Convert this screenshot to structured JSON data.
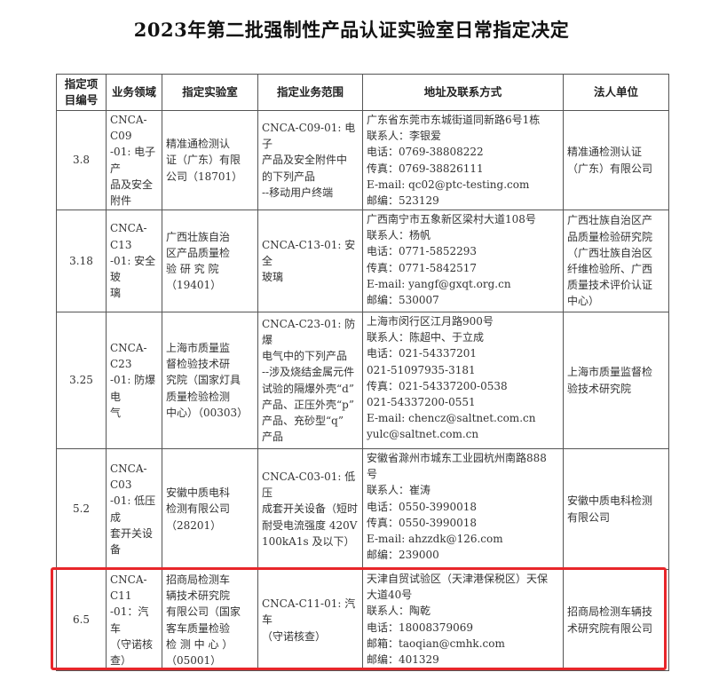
{
  "title": "2023年第二批强制性产品认证实验室日常指定决定",
  "headers": [
    "指定项\n目编号",
    "业务领域",
    "指定实验室",
    "指定业务范围",
    "地址及联系方式",
    "法人单位"
  ],
  "rows": [
    {
      "id": "3.8",
      "field": "CNCA-C09\n-01: 电子产\n品及安全\n附件",
      "lab": "精准通检测认\n证（广东）有限\n公司（18701）",
      "scope": "CNCA-C09-01: 电子\n产品及安全附件中\n的下列产品\n--移动用户终端",
      "contact": "广东省东莞市东城街道同新路6号1栋\n联系人：李银爱\n电话：0769-38808222\n传真：0769-38826111\nE-mail:  qc02@ptc-testing.com\n邮编：523129",
      "entity": "精准通检测认证\n（广东）有限公司"
    },
    {
      "id": "3.18",
      "field": "CNCA-C13\n-01: 安全玻\n璃",
      "lab": "广西壮族自治\n区产品质量检\n验 研 究 院\n（19401）",
      "scope": "CNCA-C13-01: 安全\n玻璃",
      "contact": "广西南宁市五象新区梁村大道108号\n联系人：杨帆\n电话：0771-5852293\n传真：0771-5842517\nE-mail:  yangf@gxqt.org.cn\n邮编：530007",
      "entity": "广西壮族自治区产\n品质量检验研究院\n（广西壮族自治区\n纤维检验所、广西\n质量技术评价认证\n中心）"
    },
    {
      "id": "3.25",
      "field": "CNCA-C23\n-01: 防爆电\n气",
      "lab": "上海市质量监\n督检验技术研\n究院（国家灯具\n质量检验检测\n中心）（00303）",
      "scope": "CNCA-C23-01: 防爆\n电气中的下列产品\n--涉及烧结金属元件\n试验的隔爆外壳“d”\n产品、正压外壳“p”\n产品、充砂型“q”\n产品",
      "contact": "上海市闵行区江月路900号\n联系人：陈超中、于立成\n电话：021-54337201\n          021-51097935-3181\n传真：021-54337200-0538\n          021-54337200-0551\nE-mail:  chencz@saltnet.com.cn\n             yulc@saltnet.com.cn",
      "entity": "上海市质量监督检\n验技术研究院"
    },
    {
      "id": "5.2",
      "field": "CNCA-C03\n-01: 低压成\n套开关设\n备",
      "lab": "安徽中质电科\n检测有限公司\n（28201）",
      "scope": "CNCA-C03-01: 低压\n成套开关设备（短时\n耐受电流强度 420V\n100kA1s 及以下）",
      "contact": "安徽省滁州市城东工业园杭州南路888\n号\n联系人：崔涛\n电话：0550-3990018\n传真：0550-3990018\nE-mail:  ahzzdk@126.com\n邮编：239000",
      "entity": "安徽中质电科检测\n有限公司"
    },
    {
      "id": "6.5",
      "field": "CNCA-C11\n-01：汽车\n（守诺核\n查）",
      "lab": "招商局检测车\n辆技术研究院\n有限公司（国家\n客车质量检验\n检 测 中 心 ）\n（05001）",
      "scope": "CNCA-C11-01: 汽车\n（守诺核查）",
      "contact": "天津自贸试验区（天津港保税区）天保\n大道40号\n联系人：陶乾\n电话：18008379069\n邮箱：taoqian@cmhk.com\n邮编：401329",
      "entity": "招商局检测车辆技\n术研究院有限公司"
    }
  ],
  "highlight_color": "#e8262a"
}
